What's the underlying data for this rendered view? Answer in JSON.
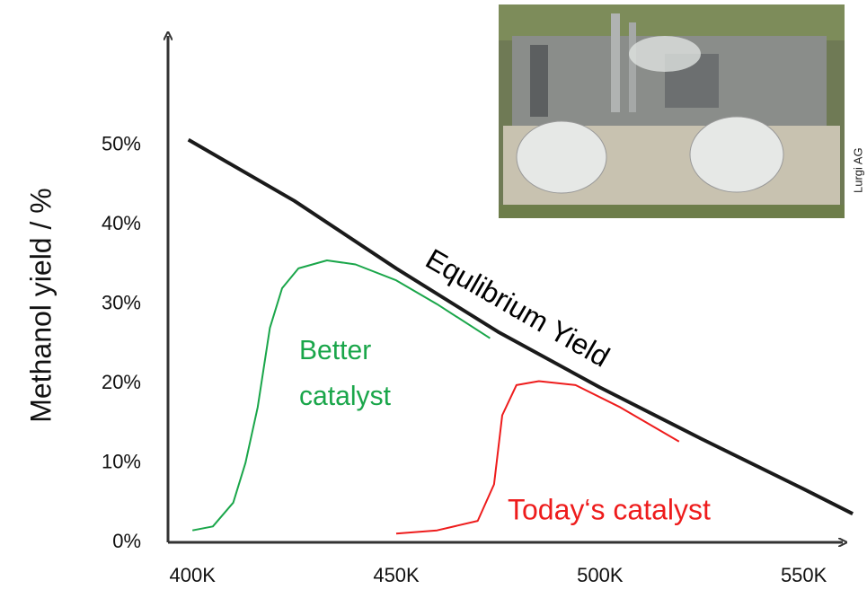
{
  "chart_data": {
    "type": "line",
    "y_label": "Methanol yield / %",
    "xlim": [
      394,
      560
    ],
    "ylim": [
      0,
      64
    ],
    "xticks": [
      {
        "value": 400,
        "label": "400K"
      },
      {
        "value": 450,
        "label": "450K"
      },
      {
        "value": 500,
        "label": "500K"
      },
      {
        "value": 550,
        "label": "550K"
      }
    ],
    "yticks": [
      {
        "value": 0,
        "label": "0%"
      },
      {
        "value": 10,
        "label": "10%"
      },
      {
        "value": 20,
        "label": "20%"
      },
      {
        "value": 30,
        "label": "30%"
      },
      {
        "value": 40,
        "label": "40%"
      },
      {
        "value": 50,
        "label": "50%"
      }
    ],
    "grid": false,
    "series": [
      {
        "name": "Equlibrium Yield",
        "color": "#1a1a1a",
        "x": [
          399,
          425,
          450,
          475,
          500,
          525,
          550,
          562
        ],
        "values": [
          50.7,
          43,
          34.5,
          26.5,
          19.5,
          13,
          6.7,
          3.6
        ]
      },
      {
        "name": "Better catalyst",
        "color": "#1aa64a",
        "x": [
          400,
          405,
          410,
          413,
          416,
          419,
          422,
          426,
          433,
          440,
          450,
          460,
          473
        ],
        "values": [
          1.5,
          2,
          5,
          10,
          17,
          27,
          32,
          34.5,
          35.5,
          35,
          33,
          30,
          25.7
        ]
      },
      {
        "name": "Today‘s catalyst",
        "color": "#ee1c1c",
        "x": [
          450,
          460,
          470,
          474,
          476,
          479.5,
          485,
          494,
          505,
          519.4
        ],
        "values": [
          1.1,
          1.5,
          2.7,
          7.3,
          16,
          19.8,
          20.3,
          19.8,
          17,
          12.7
        ]
      }
    ],
    "image_credit": "Lurgi AG"
  }
}
